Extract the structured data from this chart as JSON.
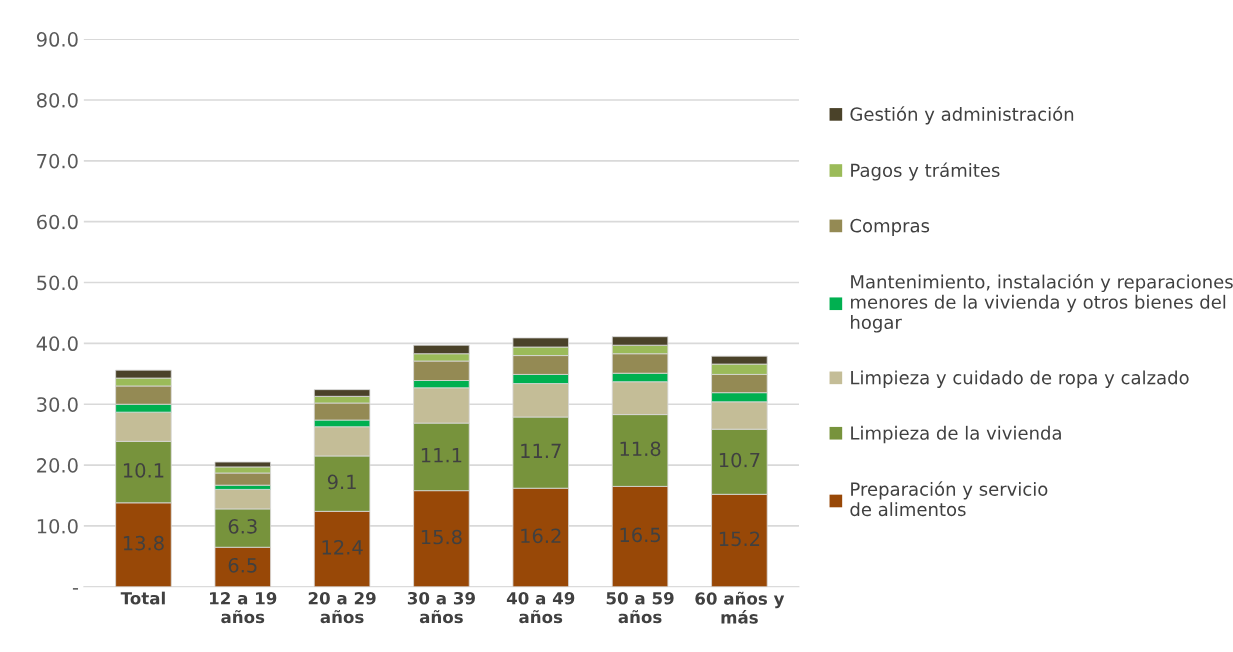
{
  "chart_data": {
    "type": "bar",
    "stacked": true,
    "categories": [
      "Total",
      "12 a 19\naños",
      "20 a 29\naños",
      "30 a 39\naños",
      "40 a 49\naños",
      "50 a 59\naños",
      "60 años y\nmás"
    ],
    "ylim": [
      0,
      90
    ],
    "yticks": [
      {
        "value": 0,
        "label": "-"
      },
      {
        "value": 10,
        "label": "10.0"
      },
      {
        "value": 20,
        "label": "20.0"
      },
      {
        "value": 30,
        "label": "30.0"
      },
      {
        "value": 40,
        "label": "40.0"
      },
      {
        "value": 50,
        "label": "50.0"
      },
      {
        "value": 60,
        "label": "60.0"
      },
      {
        "value": 70,
        "label": "70.0"
      },
      {
        "value": 80,
        "label": "80.0"
      },
      {
        "value": 90,
        "label": "90.0"
      }
    ],
    "grid": "y",
    "legend": "right",
    "series": [
      {
        "name": "Preparación y servicio\nde alimentos",
        "color": "#984807",
        "values": [
          13.8,
          6.5,
          12.4,
          15.8,
          16.2,
          16.5,
          15.2
        ],
        "value_labels": [
          "13.8",
          "6.5",
          "12.4",
          "15.8",
          "16.2",
          "16.5",
          "15.2"
        ]
      },
      {
        "name": "Limpieza de la vivienda",
        "color": "#77933c",
        "values": [
          10.1,
          6.3,
          9.1,
          11.1,
          11.7,
          11.8,
          10.7
        ],
        "value_labels": [
          "10.1",
          "6.3",
          "9.1",
          "11.1",
          "11.7",
          "11.8",
          "10.7"
        ]
      },
      {
        "name": "Limpieza y cuidado de ropa y calzado",
        "color": "#c4bd97",
        "values": [
          4.8,
          3.2,
          4.8,
          5.8,
          5.5,
          5.4,
          4.5
        ]
      },
      {
        "name": "Mantenimiento, instalación y reparaciones\nmenores de la vivienda y otros bienes del\nhogar",
        "color": "#00b050",
        "values": [
          1.3,
          0.7,
          1.1,
          1.2,
          1.5,
          1.4,
          1.5
        ]
      },
      {
        "name": "Compras",
        "color": "#948a54",
        "values": [
          3.0,
          2.0,
          2.8,
          3.2,
          3.1,
          3.2,
          3.0
        ]
      },
      {
        "name": "Pagos y trámites",
        "color": "#9bbb59",
        "values": [
          1.3,
          1.0,
          1.1,
          1.2,
          1.4,
          1.4,
          1.7
        ]
      },
      {
        "name": "Gestión y administración",
        "color": "#4a4229",
        "values": [
          1.3,
          0.8,
          1.1,
          1.4,
          1.5,
          1.4,
          1.3
        ]
      }
    ]
  }
}
